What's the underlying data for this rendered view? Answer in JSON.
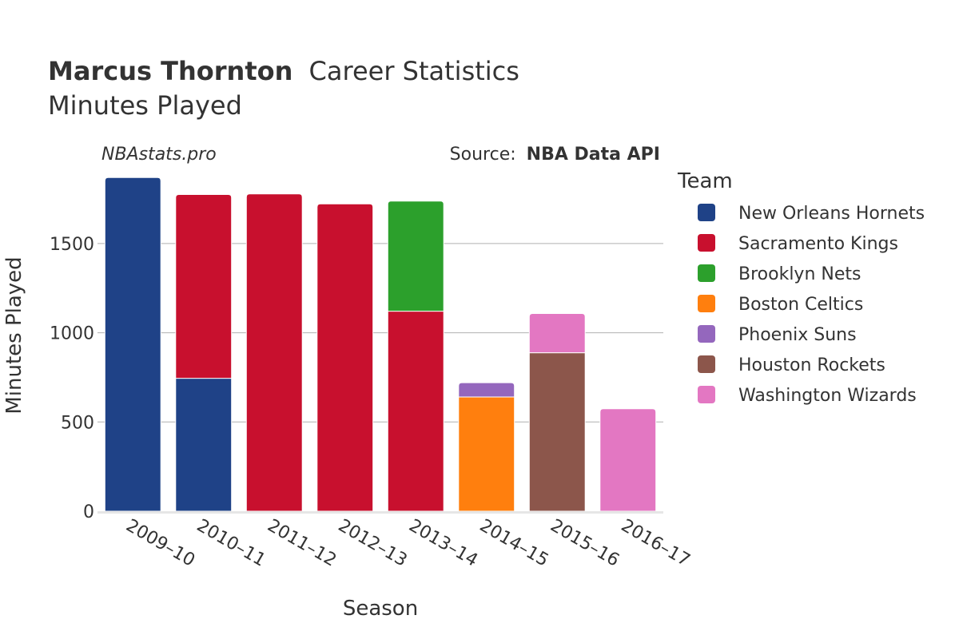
{
  "header": {
    "player_name": "Marcus Thornton",
    "title_rest": "Career Statistics",
    "subtitle": "Minutes Played",
    "brand": "NBAstats.pro",
    "source_label": "Source:",
    "source_value": "NBA Data API"
  },
  "chart_data": {
    "type": "bar",
    "stacked": true,
    "xlabel": "Season",
    "ylabel": "Minutes Played",
    "ylim": [
      0,
      1880
    ],
    "yticks": [
      0,
      500,
      1000,
      1500
    ],
    "grid": true,
    "legend_title": "Team",
    "legend_placement": "right",
    "categories": [
      "2009–10",
      "2010–11",
      "2011–12",
      "2012–13",
      "2013–14",
      "2014–15",
      "2015–16",
      "2016–17"
    ],
    "series": [
      {
        "name": "New Orleans Hornets",
        "color": "#1f4287",
        "values": [
          1870,
          745,
          0,
          0,
          0,
          0,
          0,
          0
        ]
      },
      {
        "name": "Sacramento Kings",
        "color": "#c8102e",
        "values": [
          0,
          1030,
          1778,
          1722,
          1121,
          0,
          0,
          0
        ]
      },
      {
        "name": "Brooklyn Nets",
        "color": "#2ca02c",
        "values": [
          0,
          0,
          0,
          0,
          617,
          0,
          0,
          0
        ]
      },
      {
        "name": "Boston Celtics",
        "color": "#ff7f0e",
        "values": [
          0,
          0,
          0,
          0,
          0,
          640,
          0,
          0
        ]
      },
      {
        "name": "Phoenix Suns",
        "color": "#9467bd",
        "values": [
          0,
          0,
          0,
          0,
          0,
          80,
          0,
          0
        ]
      },
      {
        "name": "Houston Rockets",
        "color": "#8c564b",
        "values": [
          0,
          0,
          0,
          0,
          0,
          0,
          888,
          0
        ]
      },
      {
        "name": "Washington Wizards",
        "color": "#e377c2",
        "values": [
          0,
          0,
          0,
          0,
          0,
          0,
          220,
          574
        ]
      }
    ]
  }
}
